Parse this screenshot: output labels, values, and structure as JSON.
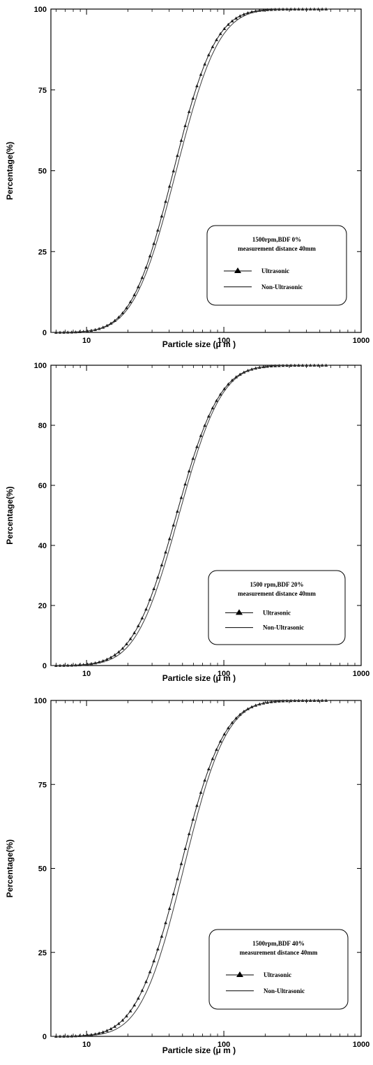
{
  "colors": {
    "ultrasonic": "#1a1a1a",
    "non_ultrasonic": "#3a3a3a",
    "axis": "#000000"
  },
  "chart_data": [
    {
      "type": "line",
      "xlabel": "Particle size (μ m )",
      "ylabel": "Percentage(%)",
      "xscale": "log",
      "xlim": [
        5.5,
        1000
      ],
      "ylim": [
        0,
        100
      ],
      "xticks": [
        10,
        100,
        1000
      ],
      "yticks": [
        0,
        25,
        50,
        75,
        100
      ],
      "grid": false,
      "legend_position": "lower-right",
      "legend_title": [
        "1500rpm,BDF 0%",
        "measurement distance 40mm"
      ],
      "series": [
        {
          "name": "Ultrasonic",
          "marker": "triangle",
          "d50": 43,
          "spread": 0.55
        },
        {
          "name": "Non-Ultrasonic",
          "marker": "none",
          "d50": 45,
          "spread": 0.56
        }
      ]
    },
    {
      "type": "line",
      "xlabel": "Particle size (μ m )",
      "ylabel": "Percentage(%)",
      "xscale": "log",
      "xlim": [
        5.5,
        1000
      ],
      "ylim": [
        0,
        100
      ],
      "xticks": [
        10,
        100,
        1000
      ],
      "yticks": [
        0,
        20,
        40,
        60,
        80,
        100
      ],
      "grid": false,
      "legend_position": "lower-right",
      "legend_title": [
        "1500 rpm,BDF 20%",
        "measurement distance 40mm"
      ],
      "series": [
        {
          "name": "Ultrasonic",
          "marker": "triangle",
          "d50": 45,
          "spread": 0.57
        },
        {
          "name": "Non-Ultrasonic",
          "marker": "none",
          "d50": 47,
          "spread": 0.56
        }
      ]
    },
    {
      "type": "line",
      "xlabel": "Particle size (μ m )",
      "ylabel": "Percentage(%)",
      "xscale": "log",
      "xlim": [
        5.5,
        1000
      ],
      "ylim": [
        0,
        100
      ],
      "xticks": [
        10,
        100,
        1000
      ],
      "yticks": [
        0,
        25,
        50,
        75,
        100
      ],
      "grid": false,
      "legend_position": "lower-right",
      "legend_title": [
        "1500rpm,BDF 40%",
        "measurement distance 40mm"
      ],
      "series": [
        {
          "name": "Ultrasonic",
          "marker": "triangle",
          "d50": 48,
          "spread": 0.58
        },
        {
          "name": "Non-Ultrasonic",
          "marker": "none",
          "d50": 51,
          "spread": 0.56
        }
      ]
    }
  ]
}
